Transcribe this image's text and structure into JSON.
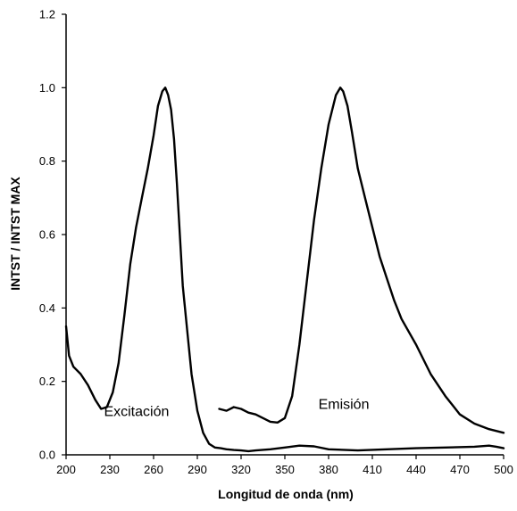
{
  "chart_data": {
    "type": "line",
    "title": "",
    "xlabel": "Longitud de onda (nm)",
    "ylabel": "INTST / INTST MAX",
    "xlim": [
      200,
      500
    ],
    "ylim": [
      0,
      1.2
    ],
    "x_ticks": [
      200,
      230,
      260,
      290,
      320,
      350,
      380,
      410,
      440,
      470,
      500
    ],
    "x_tick_labels": [
      "200",
      "230",
      "260",
      "290",
      "320",
      "350",
      "380",
      "410",
      "440",
      "470",
      "500"
    ],
    "y_ticks": [
      0,
      0.2,
      0.4,
      0.6,
      0.8,
      1.0,
      1.2
    ],
    "y_tick_labels": [
      "0.0",
      "0.2",
      "0.4",
      "0.6",
      "0.8",
      "1.0",
      "1.2"
    ],
    "grid": false,
    "legend": "none",
    "line_color": "#000000",
    "annotations": [
      {
        "text": "Excitación",
        "x": 226,
        "y": 0.12
      },
      {
        "text": "Emisión",
        "x": 373,
        "y": 0.14
      }
    ],
    "series": [
      {
        "x": [
          200,
          202,
          205,
          210,
          215,
          220,
          224,
          228,
          232,
          236,
          240,
          244,
          248,
          252,
          256,
          260,
          263,
          266,
          268,
          270,
          272,
          274,
          276,
          278,
          280,
          283,
          286,
          290,
          294,
          298,
          302,
          306,
          310,
          315,
          320,
          325,
          330,
          340,
          350,
          360,
          370,
          380,
          400,
          420,
          440,
          460,
          480,
          490,
          495,
          500
        ],
        "y": [
          0.35,
          0.27,
          0.24,
          0.22,
          0.19,
          0.15,
          0.125,
          0.13,
          0.17,
          0.25,
          0.38,
          0.52,
          0.62,
          0.7,
          0.78,
          0.87,
          0.95,
          0.99,
          1.0,
          0.98,
          0.94,
          0.86,
          0.74,
          0.6,
          0.46,
          0.34,
          0.22,
          0.12,
          0.06,
          0.03,
          0.02,
          0.018,
          0.015,
          0.013,
          0.012,
          0.01,
          0.012,
          0.015,
          0.02,
          0.025,
          0.023,
          0.015,
          0.012,
          0.015,
          0.018,
          0.02,
          0.022,
          0.025,
          0.022,
          0.018
        ]
      },
      {
        "x": [
          305,
          310,
          315,
          320,
          325,
          330,
          335,
          340,
          345,
          350,
          355,
          360,
          365,
          370,
          375,
          380,
          385,
          388,
          390,
          393,
          396,
          400,
          405,
          410,
          415,
          420,
          425,
          430,
          440,
          450,
          460,
          470,
          480,
          490,
          500
        ],
        "y": [
          0.125,
          0.12,
          0.13,
          0.125,
          0.115,
          0.11,
          0.1,
          0.09,
          0.088,
          0.1,
          0.16,
          0.3,
          0.47,
          0.64,
          0.78,
          0.9,
          0.98,
          1.0,
          0.99,
          0.95,
          0.88,
          0.78,
          0.7,
          0.62,
          0.54,
          0.48,
          0.42,
          0.37,
          0.3,
          0.22,
          0.16,
          0.11,
          0.085,
          0.07,
          0.06
        ]
      }
    ]
  }
}
